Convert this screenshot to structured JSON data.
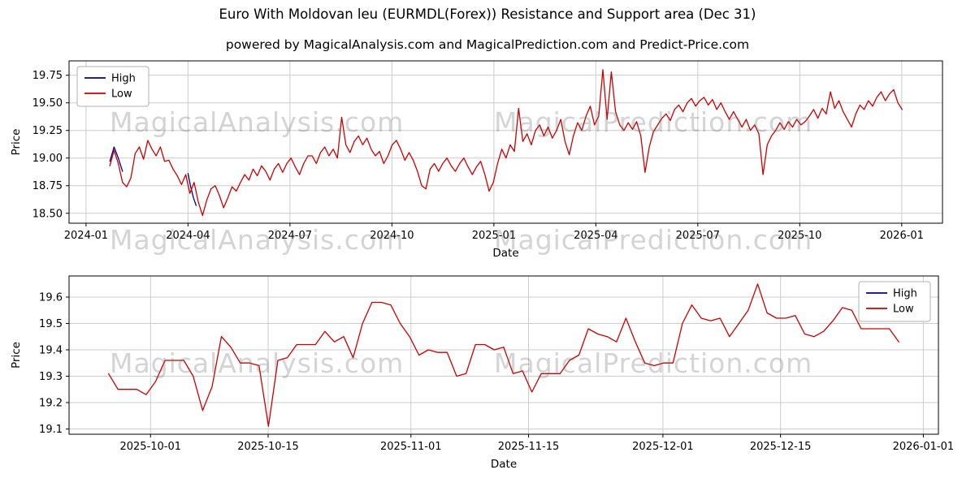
{
  "title": "Euro With Moldovan leu (EURMDL(Forex)) Resistance and Support area (Dec 31)",
  "subtitle": "powered by MagicalAnalysis.com and MagicalPrediction.com and Predict-Price.com",
  "watermark": {
    "left": "MagicalAnalysis.com",
    "right": "MagicalPrediction.com"
  },
  "colors": {
    "high": "#00008b",
    "low": "#cc0000",
    "grid": "#cccccc",
    "frame": "#000000"
  },
  "chart_data": [
    {
      "type": "line",
      "title": "",
      "xlabel": "Date",
      "ylabel": "Price",
      "x_unit": "months since 2024-01-01",
      "xlim": [
        -0.5,
        25.2
      ],
      "ylim": [
        18.41,
        19.88
      ],
      "grid": true,
      "xticks": [
        {
          "v": 0,
          "label": "2024-01"
        },
        {
          "v": 3,
          "label": "2024-04"
        },
        {
          "v": 6,
          "label": "2024-07"
        },
        {
          "v": 9,
          "label": "2024-10"
        },
        {
          "v": 12,
          "label": "2025-01"
        },
        {
          "v": 15,
          "label": "2025-04"
        },
        {
          "v": 18,
          "label": "2025-07"
        },
        {
          "v": 21,
          "label": "2025-10"
        },
        {
          "v": 24,
          "label": "2026-01"
        }
      ],
      "yticks": [
        {
          "v": 18.5,
          "label": "18.50"
        },
        {
          "v": 18.75,
          "label": "18.75"
        },
        {
          "v": 19.0,
          "label": "19.00"
        },
        {
          "v": 19.25,
          "label": "19.25"
        },
        {
          "v": 19.5,
          "label": "19.50"
        },
        {
          "v": 19.75,
          "label": "19.75"
        }
      ],
      "legend": {
        "position": "top-left",
        "entries": [
          {
            "label": "High",
            "color": "#00008b"
          },
          {
            "label": "Low",
            "color": "#cc0000"
          }
        ]
      },
      "series": [
        {
          "name": "High",
          "color": "#00008b",
          "x0": 0.7,
          "dx": 0.124,
          "y": [
            18.97,
            19.1,
            19.0,
            18.88
          ]
        },
        {
          "name": "High",
          "color": "#00008b",
          "x0": 3.0,
          "dx": 0.08,
          "y": [
            18.86,
            18.74,
            18.64,
            18.57
          ]
        },
        {
          "name": "Low",
          "color": "#cc0000",
          "x0": 0.7,
          "dx": 0.124,
          "y": [
            18.93,
            19.07,
            18.95,
            18.78,
            18.74,
            18.82,
            19.04,
            19.1,
            18.99,
            19.16,
            19.08,
            19.02,
            19.1,
            18.97,
            18.98,
            18.9,
            18.84,
            18.76,
            18.85,
            18.68,
            18.78,
            18.6,
            18.48,
            18.62,
            18.72,
            18.75,
            18.66,
            18.55,
            18.64,
            18.74,
            18.7,
            18.78,
            18.85,
            18.8,
            18.9,
            18.84,
            18.93,
            18.88,
            18.8,
            18.9,
            18.95,
            18.87,
            18.95,
            19.0,
            18.92,
            18.85,
            18.95,
            19.02,
            19.02,
            18.95,
            19.05,
            19.1,
            19.02,
            19.08,
            19.0,
            19.37,
            19.12,
            19.05,
            19.15,
            19.2,
            19.12,
            19.18,
            19.08,
            19.02,
            19.06,
            18.95,
            19.02,
            19.12,
            19.16,
            19.08,
            18.98,
            19.05,
            18.98,
            18.88,
            18.75,
            18.72,
            18.9,
            18.95,
            18.88,
            18.95,
            19.0,
            18.93,
            18.88,
            18.95,
            19.0,
            18.92,
            18.85,
            18.92,
            18.97,
            18.85,
            18.7,
            18.78,
            18.95,
            19.08,
            19.0,
            19.12,
            19.06,
            19.45,
            19.15,
            19.22,
            19.12,
            19.25,
            19.3,
            19.2,
            19.28,
            19.18,
            19.25,
            19.35,
            19.15,
            19.03,
            19.2,
            19.32,
            19.25,
            19.38,
            19.47,
            19.3,
            19.38,
            19.8,
            19.35,
            19.78,
            19.42,
            19.3,
            19.25,
            19.32,
            19.26,
            19.33,
            19.2,
            18.87,
            19.1,
            19.24,
            19.3,
            19.36,
            19.4,
            19.34,
            19.44,
            19.48,
            19.42,
            19.5,
            19.54,
            19.47,
            19.52,
            19.55,
            19.48,
            19.53,
            19.44,
            19.5,
            19.42,
            19.35,
            19.42,
            19.35,
            19.28,
            19.35,
            19.25,
            19.3,
            19.22,
            18.85,
            19.12,
            19.2,
            19.25,
            19.32,
            19.26,
            19.33,
            19.28,
            19.35,
            19.3,
            19.33,
            19.38,
            19.44,
            19.36,
            19.45,
            19.4,
            19.6,
            19.45,
            19.52,
            19.42,
            19.35,
            19.28,
            19.4,
            19.48,
            19.44,
            19.52,
            19.47,
            19.55,
            19.6,
            19.52,
            19.58,
            19.62,
            19.5,
            19.44
          ]
        }
      ]
    },
    {
      "type": "line",
      "title": "",
      "xlabel": "Date",
      "ylabel": "Price",
      "x_unit": "days since 2025-09-26",
      "xlim": [
        -4.7,
        98.8
      ],
      "ylim": [
        19.08,
        19.68
      ],
      "grid": true,
      "xticks": [
        {
          "v": 5,
          "label": "2025-10-01"
        },
        {
          "v": 19,
          "label": "2025-10-15"
        },
        {
          "v": 36,
          "label": "2025-11-01"
        },
        {
          "v": 50,
          "label": "2025-11-15"
        },
        {
          "v": 66,
          "label": "2025-12-01"
        },
        {
          "v": 80,
          "label": "2025-12-15"
        },
        {
          "v": 97,
          "label": "2026-01-01"
        }
      ],
      "yticks": [
        {
          "v": 19.1,
          "label": "19.1"
        },
        {
          "v": 19.2,
          "label": "19.2"
        },
        {
          "v": 19.3,
          "label": "19.3"
        },
        {
          "v": 19.4,
          "label": "19.4"
        },
        {
          "v": 19.5,
          "label": "19.5"
        },
        {
          "v": 19.6,
          "label": "19.6"
        }
      ],
      "legend": {
        "position": "top-right",
        "entries": [
          {
            "label": "High",
            "color": "#00008b"
          },
          {
            "label": "Low",
            "color": "#cc0000"
          }
        ]
      },
      "series": [
        {
          "name": "Low",
          "color": "#cc0000",
          "x0": 0,
          "dx": 1.12,
          "y": [
            19.31,
            19.25,
            19.25,
            19.25,
            19.23,
            19.28,
            19.36,
            19.36,
            19.36,
            19.3,
            19.17,
            19.26,
            19.45,
            19.41,
            19.35,
            19.35,
            19.34,
            19.11,
            19.36,
            19.37,
            19.42,
            19.42,
            19.42,
            19.47,
            19.43,
            19.45,
            19.37,
            19.5,
            19.58,
            19.58,
            19.57,
            19.5,
            19.45,
            19.38,
            19.4,
            19.39,
            19.39,
            19.3,
            19.31,
            19.42,
            19.42,
            19.4,
            19.41,
            19.31,
            19.32,
            19.24,
            19.31,
            19.31,
            19.31,
            19.36,
            19.38,
            19.48,
            19.46,
            19.45,
            19.43,
            19.52,
            19.43,
            19.35,
            19.34,
            19.35,
            19.35,
            19.5,
            19.57,
            19.52,
            19.51,
            19.52,
            19.45,
            19.5,
            19.55,
            19.65,
            19.54,
            19.52,
            19.52,
            19.53,
            19.46,
            19.45,
            19.47,
            19.51,
            19.56,
            19.55,
            19.48,
            19.48,
            19.48,
            19.48,
            19.43
          ]
        }
      ]
    }
  ]
}
